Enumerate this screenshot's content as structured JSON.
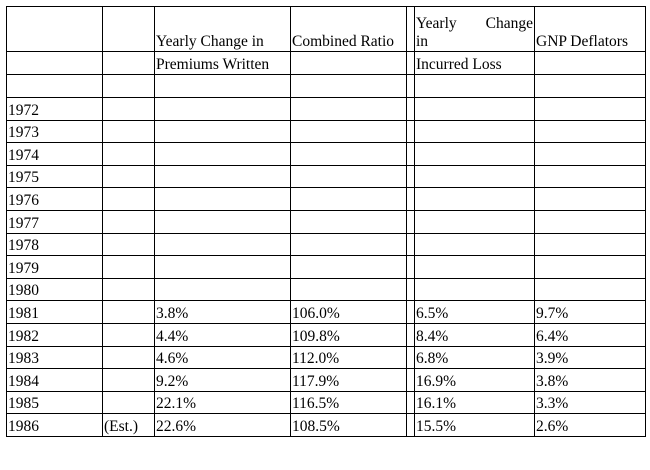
{
  "headers": {
    "col_premiums_line1": "Yearly Change in",
    "col_premiums_line2": "Premiums Written",
    "col_combined": "Combined Ratio",
    "col_loss_word1": "Yearly",
    "col_loss_word2": "Change",
    "col_loss_word3": "in",
    "col_loss_line2": "Incurred Loss",
    "col_gnp": "GNP Deflators"
  },
  "rows": [
    {
      "year": "1972",
      "note": "",
      "premiums": "",
      "combined": "",
      "loss": "",
      "gnp": ""
    },
    {
      "year": "1973",
      "note": "",
      "premiums": "",
      "combined": "",
      "loss": "",
      "gnp": ""
    },
    {
      "year": "1974",
      "note": "",
      "premiums": "",
      "combined": "",
      "loss": "",
      "gnp": ""
    },
    {
      "year": "1975",
      "note": "",
      "premiums": "",
      "combined": "",
      "loss": "",
      "gnp": ""
    },
    {
      "year": "1976",
      "note": "",
      "premiums": "",
      "combined": "",
      "loss": "",
      "gnp": ""
    },
    {
      "year": "1977",
      "note": "",
      "premiums": "",
      "combined": "",
      "loss": "",
      "gnp": ""
    },
    {
      "year": "1978",
      "note": "",
      "premiums": "",
      "combined": "",
      "loss": "",
      "gnp": ""
    },
    {
      "year": "1979",
      "note": "",
      "premiums": "",
      "combined": "",
      "loss": "",
      "gnp": ""
    },
    {
      "year": "1980",
      "note": "",
      "premiums": "",
      "combined": "",
      "loss": "",
      "gnp": ""
    },
    {
      "year": "1981",
      "note": "",
      "premiums": "3.8%",
      "combined": "106.0%",
      "loss": "6.5%",
      "gnp": "9.7%"
    },
    {
      "year": "1982",
      "note": "",
      "premiums": "4.4%",
      "combined": "109.8%",
      "loss": "8.4%",
      "gnp": "6.4%"
    },
    {
      "year": "1983",
      "note": "",
      "premiums": "4.6%",
      "combined": "112.0%",
      "loss": "6.8%",
      "gnp": "3.9%"
    },
    {
      "year": "1984",
      "note": "",
      "premiums": "9.2%",
      "combined": "117.9%",
      "loss": "16.9%",
      "gnp": "3.8%"
    },
    {
      "year": "1985",
      "note": "",
      "premiums": "22.1%",
      "combined": "116.5%",
      "loss": "16.1%",
      "gnp": "3.3%"
    },
    {
      "year": "1986",
      "note": "(Est.)",
      "premiums": "22.6%",
      "combined": "108.5%",
      "loss": "15.5%",
      "gnp": "2.6%"
    }
  ]
}
